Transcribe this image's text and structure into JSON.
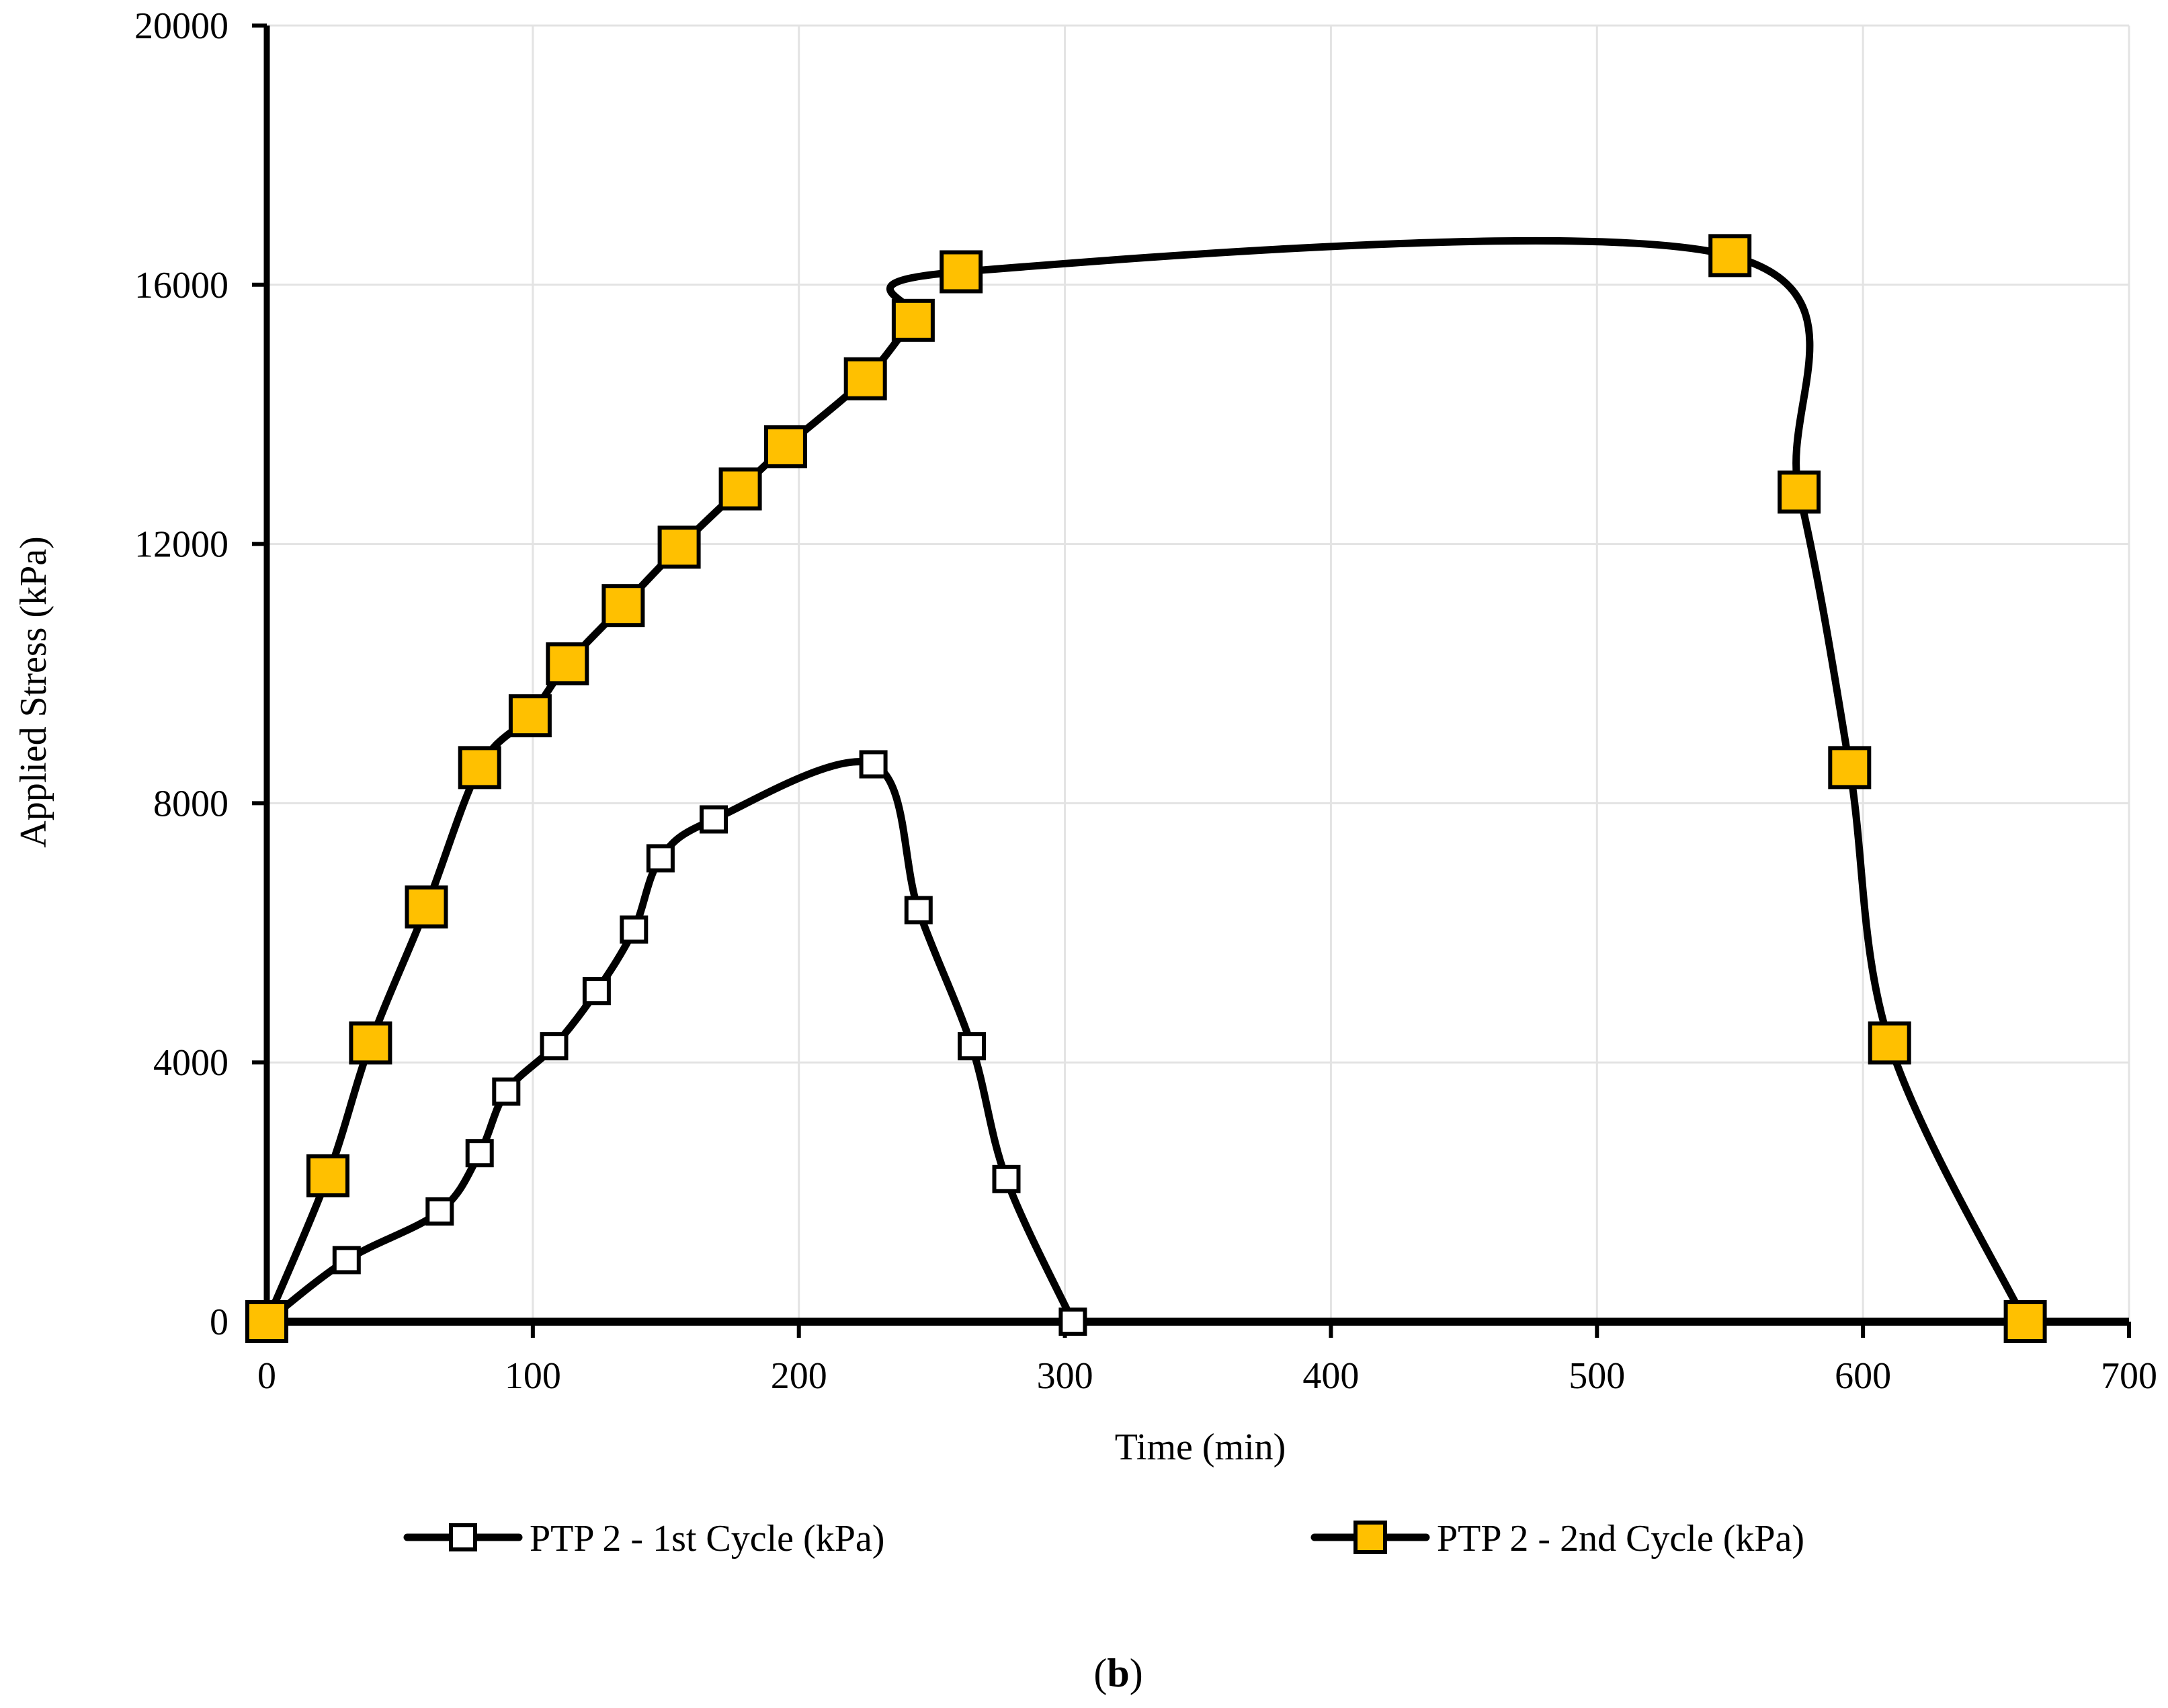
{
  "chart_data": {
    "type": "line",
    "title": "",
    "xlabel": "Time (min)",
    "ylabel": "Applied Stress (kPa)",
    "xlim": [
      0,
      700
    ],
    "ylim": [
      0,
      20000
    ],
    "xticks": [
      0,
      100,
      200,
      300,
      400,
      500,
      600,
      700
    ],
    "yticks": [
      0,
      4000,
      8000,
      12000,
      16000,
      20000
    ],
    "grid": true,
    "legend_position": "bottom",
    "caption": "(b)",
    "caption_bold": "b",
    "series": [
      {
        "name": "PTP 2 - 1st Cycle (kPa)",
        "marker": "square-open",
        "marker_color": "#ffffff",
        "line_color": "#000000",
        "points": [
          [
            0,
            0
          ],
          [
            30,
            950
          ],
          [
            65,
            1700
          ],
          [
            80,
            2600
          ],
          [
            90,
            3550
          ],
          [
            108,
            4250
          ],
          [
            124,
            5100
          ],
          [
            138,
            6050
          ],
          [
            148,
            7150
          ],
          [
            168,
            7750
          ],
          [
            228,
            8600
          ],
          [
            245,
            6350
          ],
          [
            265,
            4250
          ],
          [
            278,
            2200
          ],
          [
            303,
            0
          ]
        ]
      },
      {
        "name": "PTP 2 - 2nd Cycle (kPa)",
        "marker": "square-filled",
        "marker_color": "#ffc000",
        "line_color": "#000000",
        "points": [
          [
            0,
            0
          ],
          [
            23,
            2250
          ],
          [
            39,
            4300
          ],
          [
            60,
            6400
          ],
          [
            80,
            8550
          ],
          [
            99,
            9350
          ],
          [
            113,
            10150
          ],
          [
            134,
            11050
          ],
          [
            155,
            11950
          ],
          [
            178,
            12850
          ],
          [
            195,
            13500
          ],
          [
            225,
            14550
          ],
          [
            243,
            15450
          ],
          [
            261,
            16200
          ],
          [
            550,
            16450
          ],
          [
            576,
            12800
          ],
          [
            595,
            8550
          ],
          [
            610,
            4300
          ],
          [
            661,
            0
          ]
        ]
      }
    ]
  }
}
